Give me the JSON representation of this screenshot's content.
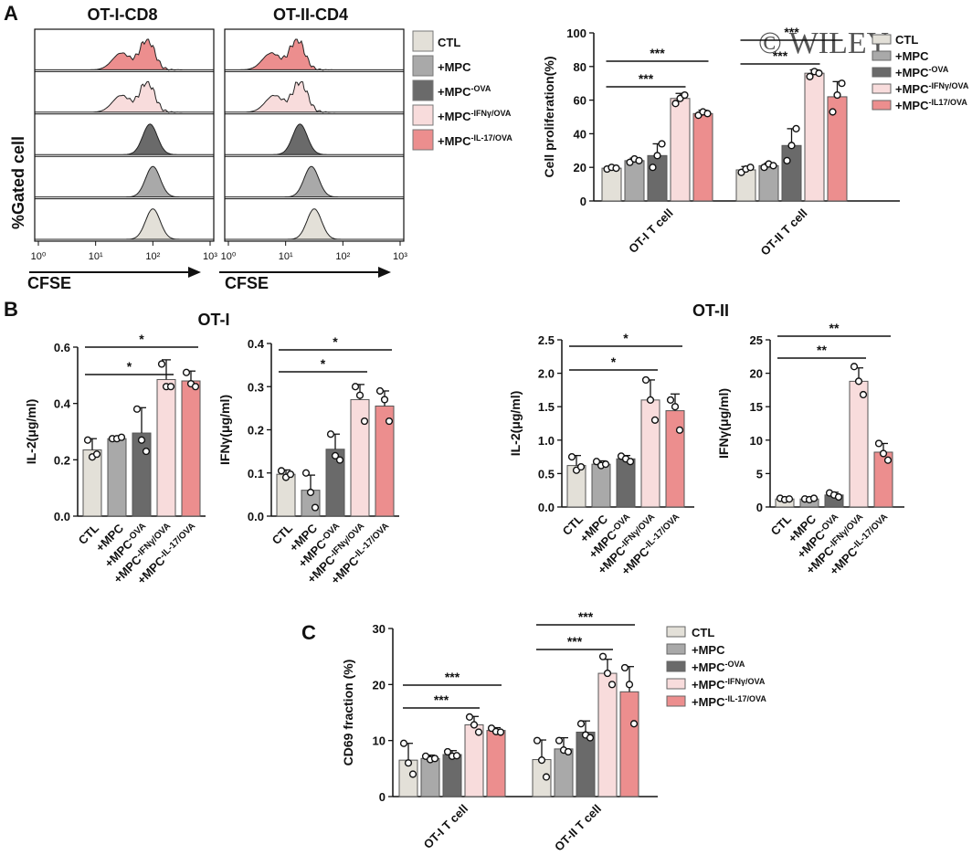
{
  "panel_labels": {
    "a": "A",
    "b": "B",
    "c": "C"
  },
  "watermark": "© WILEY",
  "colors": {
    "CTL": "#e3e0d8",
    "MPC": "#a9a9a9",
    "MPC_OVA": "#6a6a6a",
    "MPC_IFN": "#f8dcdc",
    "MPC_IL17": "#ec8e8e",
    "hist_line": "#111111"
  },
  "legend_entries": [
    {
      "key": "CTL",
      "base": "CTL",
      "sup": ""
    },
    {
      "key": "MPC",
      "base": "+MPC",
      "sup": ""
    },
    {
      "key": "MPC_OVA",
      "base": "+MPC",
      "sup": "-OVA"
    },
    {
      "key": "MPC_IFN",
      "base": "+MPC",
      "sup": "-IFNγ/OVA"
    },
    {
      "key": "MPC_IL17",
      "base": "+MPC",
      "sup": "-IL-17/OVA"
    }
  ],
  "legend_entries_short": [
    {
      "key": "CTL",
      "base": "CTL",
      "sup": ""
    },
    {
      "key": "MPC",
      "base": "+MPC",
      "sup": ""
    },
    {
      "key": "MPC_OVA",
      "base": "+MPC",
      "sup": "-OVA"
    },
    {
      "key": "MPC_IFN",
      "base": "+MPC",
      "sup": "-IFNγ/OVA"
    },
    {
      "key": "MPC_IL17",
      "base": "+MPC",
      "sup": "-IL17/OVA"
    }
  ],
  "chart_data": [
    {
      "id": "A_hist",
      "type": "area",
      "ylabel": "%Gated cell",
      "xlabel": "CFSE",
      "xtick_labels": [
        "10⁰",
        "10¹",
        "10²",
        "10³"
      ],
      "log_x": true,
      "panels": [
        {
          "title": "OT-I-CD8",
          "peak_log": [
            1.9,
            1.9,
            1.95,
            2.0,
            2.0
          ]
        },
        {
          "title": "OT-II-CD4",
          "peak_log": [
            1.2,
            1.25,
            1.25,
            1.45,
            1.5
          ]
        }
      ],
      "row_order": [
        "MPC_IL17",
        "MPC_IFN",
        "MPC_OVA",
        "MPC",
        "CTL"
      ]
    },
    {
      "id": "A_bar",
      "type": "bar",
      "ylabel": "Cell proliferation(%)",
      "ylim": [
        0,
        100
      ],
      "yticks": [
        0,
        20,
        40,
        60,
        80,
        100
      ],
      "categories": [
        "OT-I T cell",
        "OT-II T cell"
      ],
      "series": [
        {
          "key": "CTL",
          "values": [
            19.5,
            18.5
          ],
          "err": [
            1,
            2
          ],
          "points": [
            [
              19,
              20,
              19.5
            ],
            [
              17,
              19,
              20
            ]
          ]
        },
        {
          "key": "MPC",
          "values": [
            24,
            21
          ],
          "err": [
            1.5,
            1.5
          ],
          "points": [
            [
              23,
              25,
              24
            ],
            [
              20,
              22,
              21
            ]
          ]
        },
        {
          "key": "MPC_OVA",
          "values": [
            27,
            33
          ],
          "err": [
            7,
            10
          ],
          "points": [
            [
              20,
              27,
              34
            ],
            [
              24,
              33,
              43
            ]
          ]
        },
        {
          "key": "MPC_IFN",
          "values": [
            61,
            76
          ],
          "err": [
            3,
            2
          ],
          "points": [
            [
              58,
              61,
              63
            ],
            [
              74,
              77,
              76
            ]
          ]
        },
        {
          "key": "MPC_IL17",
          "values": [
            52,
            62
          ],
          "err": [
            2,
            9
          ],
          "points": [
            [
              51,
              53,
              52
            ],
            [
              53,
              63,
              70
            ]
          ]
        }
      ],
      "sig": [
        {
          "cat": 0,
          "from": 0,
          "to": 3,
          "label": "***",
          "level": "low"
        },
        {
          "cat": 0,
          "from": 0,
          "to": 4,
          "label": "***",
          "level": "high"
        },
        {
          "cat": 1,
          "from": 0,
          "to": 3,
          "label": "***",
          "level": "low"
        },
        {
          "cat": 1,
          "from": 0,
          "to": 4,
          "label": "***",
          "level": "high"
        }
      ]
    },
    {
      "id": "B1",
      "type": "bar",
      "title": "OT-I",
      "ylabel": "IL-2(μg/ml)",
      "ylim": [
        0,
        0.6
      ],
      "yticks": [
        "0.0",
        "0.2",
        "0.4",
        "0.6"
      ],
      "categories": [
        "CTL",
        "+MPC",
        "+MPC-OVA",
        "+MPC-IFNγ/OVA",
        "+MPC-IL-17/OVA"
      ],
      "values": [
        0.235,
        0.275,
        0.295,
        0.485,
        0.48
      ],
      "err": [
        0.04,
        0.005,
        0.09,
        0.07,
        0.035
      ],
      "points": [
        [
          0.27,
          0.21,
          0.22
        ],
        [
          0.275,
          0.275,
          0.28
        ],
        [
          0.38,
          0.27,
          0.23
        ],
        [
          0.54,
          0.46,
          0.46
        ],
        [
          0.51,
          0.47,
          0.46
        ]
      ],
      "sig": [
        {
          "from": 0,
          "to": 3,
          "label": "*",
          "level": "low"
        },
        {
          "from": 0,
          "to": 4,
          "label": "*",
          "level": "high"
        }
      ]
    },
    {
      "id": "B2",
      "type": "bar",
      "ylabel": "IFNγ(μg/ml)",
      "ylim": [
        0,
        0.4
      ],
      "yticks": [
        "0.0",
        "0.1",
        "0.2",
        "0.3",
        "0.4"
      ],
      "categories": [
        "CTL",
        "+MPC",
        "+MPC-OVA",
        "+MPC-IFNγ/OVA",
        "+MPC-IL-17/OVA"
      ],
      "values": [
        0.097,
        0.06,
        0.155,
        0.27,
        0.255
      ],
      "err": [
        0.01,
        0.035,
        0.035,
        0.035,
        0.035
      ],
      "points": [
        [
          0.105,
          0.09,
          0.097
        ],
        [
          0.1,
          0.055,
          0.02
        ],
        [
          0.19,
          0.14,
          0.13
        ],
        [
          0.3,
          0.28,
          0.22
        ],
        [
          0.29,
          0.27,
          0.22
        ]
      ],
      "sig": [
        {
          "from": 0,
          "to": 3,
          "label": "*",
          "level": "low"
        },
        {
          "from": 0,
          "to": 4,
          "label": "*",
          "level": "high"
        }
      ]
    },
    {
      "id": "B3",
      "type": "bar",
      "title": "OT-II",
      "ylabel": "IL-2(μg/ml)",
      "ylim": [
        0,
        2.5
      ],
      "yticks": [
        "0.0",
        "0.5",
        "1.0",
        "1.5",
        "2.0",
        "2.5"
      ],
      "categories": [
        "CTL",
        "+MPC",
        "+MPC-OVA",
        "+MPC-IFNγ/OVA",
        "+MPC-IL-17/OVA"
      ],
      "values": [
        0.62,
        0.64,
        0.72,
        1.6,
        1.44
      ],
      "err": [
        0.15,
        0.05,
        0.05,
        0.3,
        0.25
      ],
      "points": [
        [
          0.75,
          0.55,
          0.6
        ],
        [
          0.68,
          0.62,
          0.64
        ],
        [
          0.76,
          0.72,
          0.68
        ],
        [
          1.9,
          1.6,
          1.3
        ],
        [
          1.6,
          1.5,
          1.15
        ]
      ],
      "sig": [
        {
          "from": 0,
          "to": 3,
          "label": "*",
          "level": "low"
        },
        {
          "from": 0,
          "to": 4,
          "label": "*",
          "level": "high"
        }
      ]
    },
    {
      "id": "B4",
      "type": "bar",
      "ylabel": "IFNγ(μg/ml)",
      "ylim": [
        0,
        25
      ],
      "yticks": [
        "0",
        "5",
        "10",
        "15",
        "20",
        "25"
      ],
      "categories": [
        "CTL",
        "+MPC",
        "+MPC-OVA",
        "+MPC-IFNγ/OVA",
        "+MPC-IL-17/OVA"
      ],
      "values": [
        1.2,
        1.2,
        1.8,
        18.8,
        8.2
      ],
      "err": [
        0.2,
        0.1,
        0.4,
        2,
        1.3
      ],
      "points": [
        [
          1.3,
          1.1,
          1.2
        ],
        [
          1.2,
          1.1,
          1.3
        ],
        [
          2.1,
          1.8,
          1.5
        ],
        [
          21,
          18.8,
          16.8
        ],
        [
          9.5,
          8,
          7
        ]
      ],
      "sig": [
        {
          "from": 0,
          "to": 3,
          "label": "**",
          "level": "low"
        },
        {
          "from": 0,
          "to": 4,
          "label": "**",
          "level": "high"
        }
      ]
    },
    {
      "id": "C_bar",
      "type": "bar",
      "ylabel": "CD69 fraction (%)",
      "ylim": [
        0,
        30
      ],
      "yticks": [
        0,
        10,
        20,
        30
      ],
      "categories": [
        "OT-I T cell",
        "OT-II T cell"
      ],
      "series": [
        {
          "key": "CTL",
          "values": [
            6.5,
            6.6
          ],
          "err": [
            3,
            3.5
          ],
          "points": [
            [
              9.5,
              6,
              4
            ],
            [
              10,
              6.5,
              3.5
            ]
          ]
        },
        {
          "key": "MPC",
          "values": [
            6.8,
            8.5
          ],
          "err": [
            0.6,
            2
          ],
          "points": [
            [
              7.2,
              6.6,
              6.8
            ],
            [
              10,
              8.3,
              8
            ]
          ]
        },
        {
          "key": "MPC_OVA",
          "values": [
            7.5,
            11.5
          ],
          "err": [
            0.7,
            2
          ],
          "points": [
            [
              8,
              7.2,
              7.3
            ],
            [
              13,
              11,
              10.5
            ]
          ]
        },
        {
          "key": "MPC_IFN",
          "values": [
            12.8,
            22
          ],
          "err": [
            1.5,
            2.5
          ],
          "points": [
            [
              14.2,
              12.8,
              11.5
            ],
            [
              25,
              22,
              20
            ]
          ]
        },
        {
          "key": "MPC_IL17",
          "values": [
            11.8,
            18.7
          ],
          "err": [
            0.5,
            4.5
          ],
          "points": [
            [
              12.2,
              11.6,
              11.5
            ],
            [
              23,
              20,
              13
            ]
          ]
        }
      ],
      "sig": [
        {
          "cat": 0,
          "from": 0,
          "to": 3,
          "label": "***",
          "level": "low"
        },
        {
          "cat": 0,
          "from": 0,
          "to": 4,
          "label": "***",
          "level": "high"
        },
        {
          "cat": 1,
          "from": 0,
          "to": 3,
          "label": "***",
          "level": "low"
        },
        {
          "cat": 1,
          "from": 0,
          "to": 4,
          "label": "***",
          "level": "high"
        }
      ]
    }
  ]
}
